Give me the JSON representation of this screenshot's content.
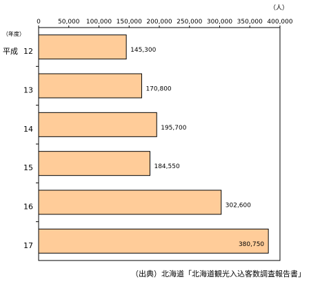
{
  "chart_data": {
    "type": "bar",
    "orientation": "horizontal",
    "unit_label": "（人）",
    "year_header": "（年度）",
    "era_prefix": "平成",
    "categories": [
      "12",
      "13",
      "14",
      "15",
      "16",
      "17"
    ],
    "values": [
      145300,
      170800,
      195700,
      184550,
      302600,
      380750
    ],
    "value_labels": [
      "145,300",
      "170,800",
      "195,700",
      "184,550",
      "302,600",
      "380,750"
    ],
    "xlim": [
      0,
      400000
    ],
    "xticks": [
      0,
      50000,
      100000,
      150000,
      200000,
      250000,
      300000,
      350000,
      400000
    ],
    "xtick_labels": [
      "0",
      "50,000",
      "100,000",
      "150,000",
      "200,000",
      "250,000",
      "300,000",
      "350,000",
      "400,000"
    ],
    "grid": false,
    "bar_color": "#FFCC99",
    "bar_edge_color": "#000000",
    "source": "（出典）北海道「北海道観光入込客数調査報告書」"
  }
}
